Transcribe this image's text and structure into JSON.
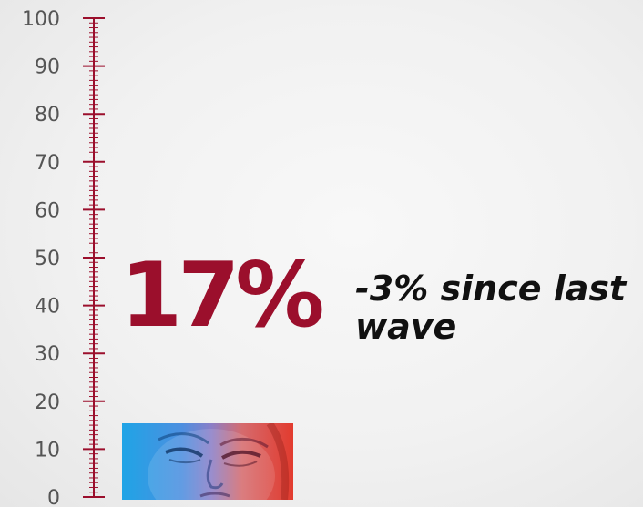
{
  "chart_data": {
    "type": "gauge",
    "value": 17,
    "value_label": "17%",
    "note": "-3% since last wave",
    "axis": {
      "ylim": [
        0,
        100
      ],
      "ticks": [
        "0",
        "10",
        "20",
        "30",
        "40",
        "50",
        "60",
        "70",
        "80",
        "90",
        "100"
      ]
    }
  },
  "colors": {
    "accent": "#9b0f2c",
    "note": "#111111",
    "tick_label": "#555555"
  },
  "image": {
    "icon": "wincing-face-photo"
  }
}
